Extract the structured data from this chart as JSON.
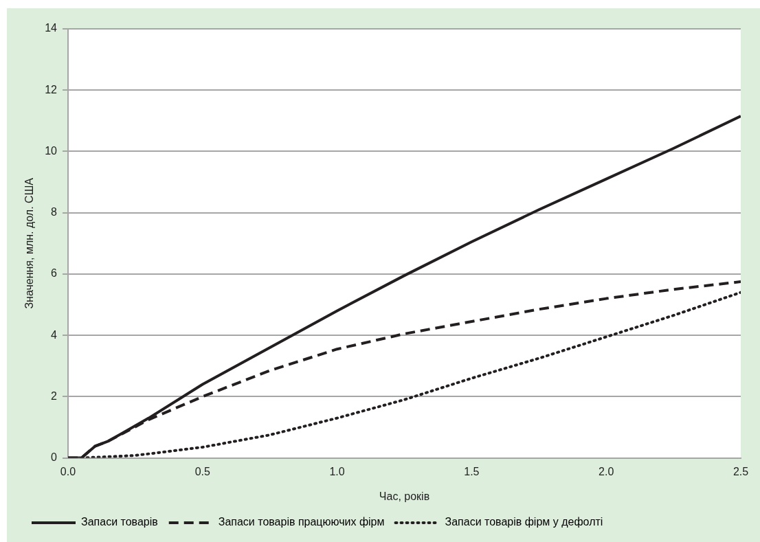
{
  "chart_data": {
    "type": "line",
    "xlabel": "Час, років",
    "ylabel": "Значення, млн. дол. США",
    "xlim": [
      0,
      2.5
    ],
    "xticks": [
      {
        "value": 0,
        "label": "0.0"
      },
      {
        "value": 0.5,
        "label": "0.5"
      },
      {
        "value": 1,
        "label": "1.0"
      },
      {
        "value": 1.5,
        "label": "1.5"
      },
      {
        "value": 2,
        "label": "2.0"
      },
      {
        "value": 2.5,
        "label": "2.5"
      }
    ],
    "ylim": [
      0,
      14
    ],
    "yticks": [
      0,
      2,
      4,
      6,
      8,
      10,
      12,
      14
    ],
    "grid": "y",
    "legend": "bottom",
    "marker": "none",
    "series": [
      {
        "name": "Запаси товарів",
        "color": "#231f20",
        "line_style": "solid",
        "x": [
          0,
          0.05,
          0.1,
          0.15,
          0.2,
          0.3,
          0.5,
          0.75,
          1.0,
          1.25,
          1.5,
          1.75,
          2.0,
          2.25,
          2.5
        ],
        "values": [
          0,
          0,
          0.38,
          0.55,
          0.8,
          1.3,
          2.4,
          3.6,
          4.8,
          5.95,
          7.05,
          8.1,
          9.1,
          10.1,
          11.15
        ]
      },
      {
        "name": "Запаси товарів працюючих фірм",
        "color": "#231f20",
        "line_style": "dashed",
        "x": [
          0,
          0.05,
          0.1,
          0.15,
          0.2,
          0.3,
          0.5,
          0.75,
          1.0,
          1.25,
          1.5,
          1.75,
          2.0,
          2.25,
          2.5
        ],
        "values": [
          0,
          0,
          0.38,
          0.55,
          0.78,
          1.25,
          2.0,
          2.85,
          3.55,
          4.05,
          4.45,
          4.85,
          5.2,
          5.5,
          5.75
        ]
      },
      {
        "name": "Запаси товарів фірм у дефолті",
        "color": "#231f20",
        "line_style": "dotted",
        "x": [
          0.05,
          0.25,
          0.5,
          0.75,
          1.0,
          1.25,
          1.5,
          1.75,
          2.0,
          2.25,
          2.5
        ],
        "values": [
          0,
          0.08,
          0.35,
          0.75,
          1.3,
          1.9,
          2.6,
          3.25,
          3.95,
          4.65,
          5.4
        ]
      }
    ]
  }
}
